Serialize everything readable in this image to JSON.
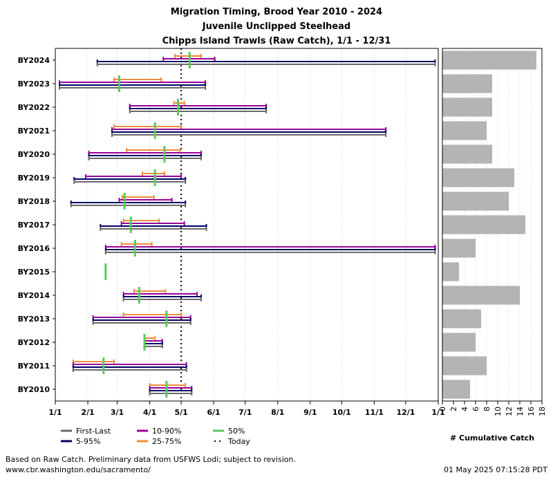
{
  "titles": [
    "Migration Timing, Brood Year 2010 - 2024",
    "Juvenile Unclipped Steelhead",
    "Chipps Island Trawls (Raw Catch), 1/1 - 12/31"
  ],
  "footer": {
    "note": "Based on Raw Catch. Preliminary data from USFWS Lodi; subject to revision.",
    "url": "www.cbr.washington.edu/sacramento/",
    "timestamp": "01 May 2025 07:15:28 PDT"
  },
  "chart_data": [
    {
      "type": "timing-range",
      "x_ticks": [
        "1/1",
        "2/1",
        "3/1",
        "4/1",
        "5/1",
        "6/1",
        "7/1",
        "8/1",
        "9/1",
        "10/1",
        "11/1",
        "12/1",
        "1/1"
      ],
      "x_range_days": [
        0,
        365
      ],
      "today": 120,
      "colors": {
        "first_last": "#696969",
        "p5_95": "#000066",
        "p10_90": "#990099",
        "p25_75": "#f08c3c",
        "p50": "#5cc85c",
        "today": "#000000"
      },
      "legend": [
        {
          "key": "first_last",
          "label": "First-Last"
        },
        {
          "key": "p5_95",
          "label": "5-95%"
        },
        {
          "key": "p10_90",
          "label": "10-90%"
        },
        {
          "key": "p25_75",
          "label": "25-75%"
        },
        {
          "key": "p50",
          "label": "50%"
        },
        {
          "key": "today",
          "label": "Today"
        }
      ],
      "rows": [
        {
          "label": "BY2024",
          "first_last": [
            40,
            362
          ],
          "p5_95": [
            40,
            362
          ],
          "p10_90": [
            103,
            152
          ],
          "p25_75": [
            114,
            139
          ],
          "p50": 128
        },
        {
          "label": "BY2023",
          "first_last": [
            4,
            143
          ],
          "p5_95": [
            4,
            143
          ],
          "p10_90": [
            4,
            143
          ],
          "p25_75": [
            56,
            101
          ],
          "p50": 61
        },
        {
          "label": "BY2022",
          "first_last": [
            71,
            201
          ],
          "p5_95": [
            71,
            201
          ],
          "p10_90": [
            71,
            201
          ],
          "p25_75": [
            113,
            123
          ],
          "p50": 117
        },
        {
          "label": "BY2021",
          "first_last": [
            54,
            315
          ],
          "p5_95": [
            54,
            315
          ],
          "p10_90": [
            54,
            315
          ],
          "p25_75": [
            56,
            120
          ],
          "p50": 95
        },
        {
          "label": "BY2020",
          "first_last": [
            32,
            139
          ],
          "p5_95": [
            32,
            139
          ],
          "p10_90": [
            32,
            139
          ],
          "p25_75": [
            68,
            119
          ],
          "p50": 104
        },
        {
          "label": "BY2019",
          "first_last": [
            18,
            124
          ],
          "p5_95": [
            18,
            124
          ],
          "p10_90": [
            29,
            120
          ],
          "p25_75": [
            83,
            104
          ],
          "p50": 95
        },
        {
          "label": "BY2018",
          "first_last": [
            15,
            124
          ],
          "p5_95": [
            15,
            124
          ],
          "p10_90": [
            61,
            111
          ],
          "p25_75": [
            64,
            94
          ],
          "p50": 66
        },
        {
          "label": "BY2017",
          "first_last": [
            43,
            144
          ],
          "p5_95": [
            43,
            144
          ],
          "p10_90": [
            63,
            123
          ],
          "p25_75": [
            65,
            99
          ],
          "p50": 72
        },
        {
          "label": "BY2016",
          "first_last": [
            48,
            362
          ],
          "p5_95": [
            48,
            362
          ],
          "p10_90": [
            48,
            362
          ],
          "p25_75": [
            63,
            92
          ],
          "p50": 76
        },
        {
          "label": "BY2015",
          "p50": 48
        },
        {
          "label": "BY2014",
          "first_last": [
            65,
            139
          ],
          "p5_95": [
            65,
            139
          ],
          "p10_90": [
            65,
            135
          ],
          "p25_75": [
            75,
            105
          ],
          "p50": 80
        },
        {
          "label": "BY2013",
          "first_last": [
            36,
            129
          ],
          "p5_95": [
            36,
            129
          ],
          "p10_90": [
            36,
            129
          ],
          "p25_75": [
            65,
            120
          ],
          "p50": 106
        },
        {
          "label": "BY2012",
          "first_last": [
            85,
            102
          ],
          "p5_95": [
            85,
            102
          ],
          "p10_90": [
            85,
            102
          ],
          "p25_75": [
            85,
            95
          ],
          "p50": 85
        },
        {
          "label": "BY2011",
          "first_last": [
            17,
            125
          ],
          "p5_95": [
            17,
            125
          ],
          "p10_90": [
            17,
            125
          ],
          "p25_75": [
            17,
            56
          ],
          "p50": 46
        },
        {
          "label": "BY2010",
          "first_last": [
            90,
            130
          ],
          "p5_95": [
            90,
            130
          ],
          "p10_90": [
            90,
            130
          ],
          "p25_75": [
            90,
            124
          ],
          "p50": 106
        }
      ]
    },
    {
      "type": "bar",
      "orientation": "horizontal",
      "categories": [
        "BY2024",
        "BY2023",
        "BY2022",
        "BY2021",
        "BY2020",
        "BY2019",
        "BY2018",
        "BY2017",
        "BY2016",
        "BY2015",
        "BY2014",
        "BY2013",
        "BY2012",
        "BY2011",
        "BY2010"
      ],
      "values": [
        17,
        9,
        9,
        8,
        9,
        13,
        12,
        15,
        6,
        3,
        14,
        7,
        6,
        8,
        5
      ],
      "xlim": [
        0,
        18
      ],
      "x_ticks": [
        0,
        2,
        4,
        6,
        8,
        10,
        12,
        14,
        16,
        18
      ],
      "xlabel": "# Cumulative Catch",
      "bar_color": "#b4b4b4",
      "grid": true
    }
  ]
}
